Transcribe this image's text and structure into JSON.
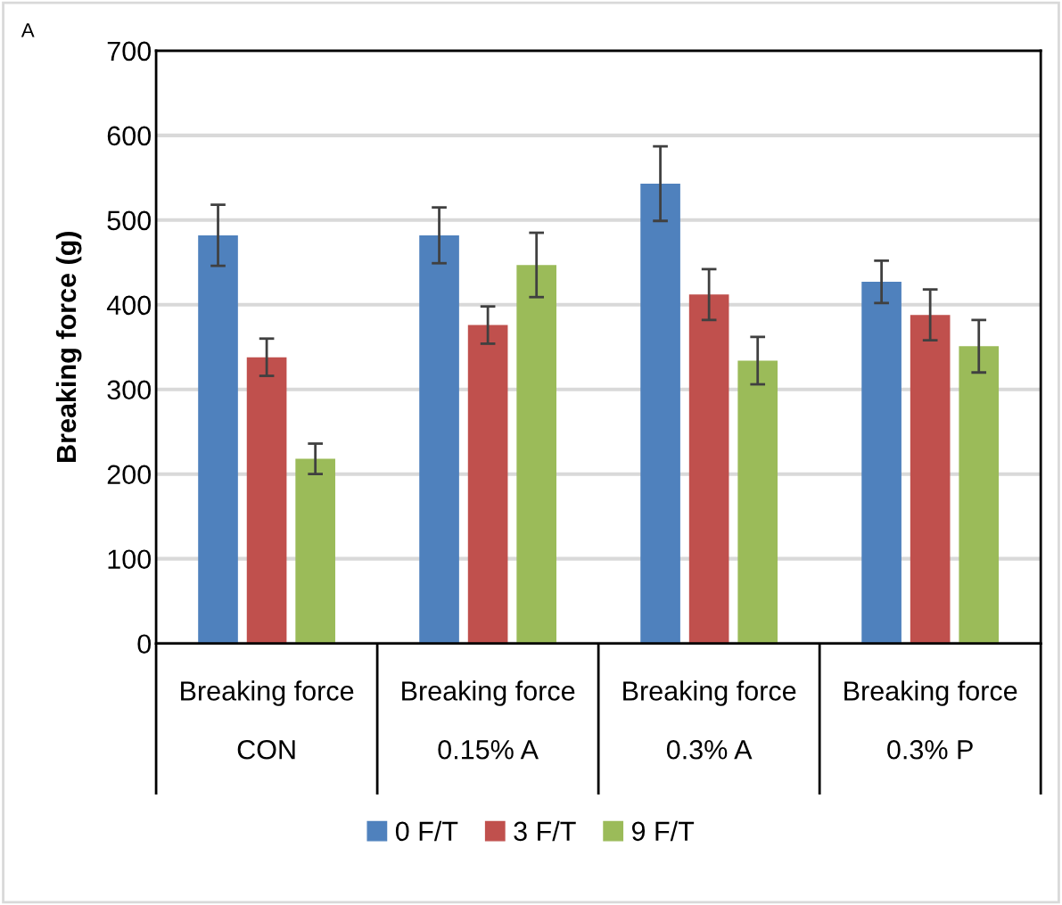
{
  "chart_data": {
    "type": "bar",
    "ylabel": "Breaking force (g)",
    "categories": [
      "Breaking force\n\nCON",
      "Breaking force\n\n0.15% A",
      "Breaking force\n\n0.3% A",
      "Breaking force\n\n0.3% P"
    ],
    "series": [
      {
        "name": "0 F/T",
        "color": "#4f81bd",
        "values": [
          482,
          482,
          543,
          427
        ],
        "errors": [
          36,
          33,
          44,
          25
        ]
      },
      {
        "name": "3 F/T",
        "color": "#c0504d",
        "values": [
          338,
          376,
          412,
          388
        ],
        "errors": [
          22,
          22,
          30,
          30
        ]
      },
      {
        "name": "9 F/T",
        "color": "#9bbb59",
        "values": [
          218,
          447,
          334,
          351
        ],
        "errors": [
          18,
          38,
          28,
          31
        ]
      }
    ],
    "ylim": [
      0,
      700
    ],
    "yticks": [
      0,
      100,
      200,
      300,
      400,
      500,
      600,
      700
    ],
    "grid": "y",
    "legend": "bottom",
    "annotations": [
      "A"
    ]
  }
}
